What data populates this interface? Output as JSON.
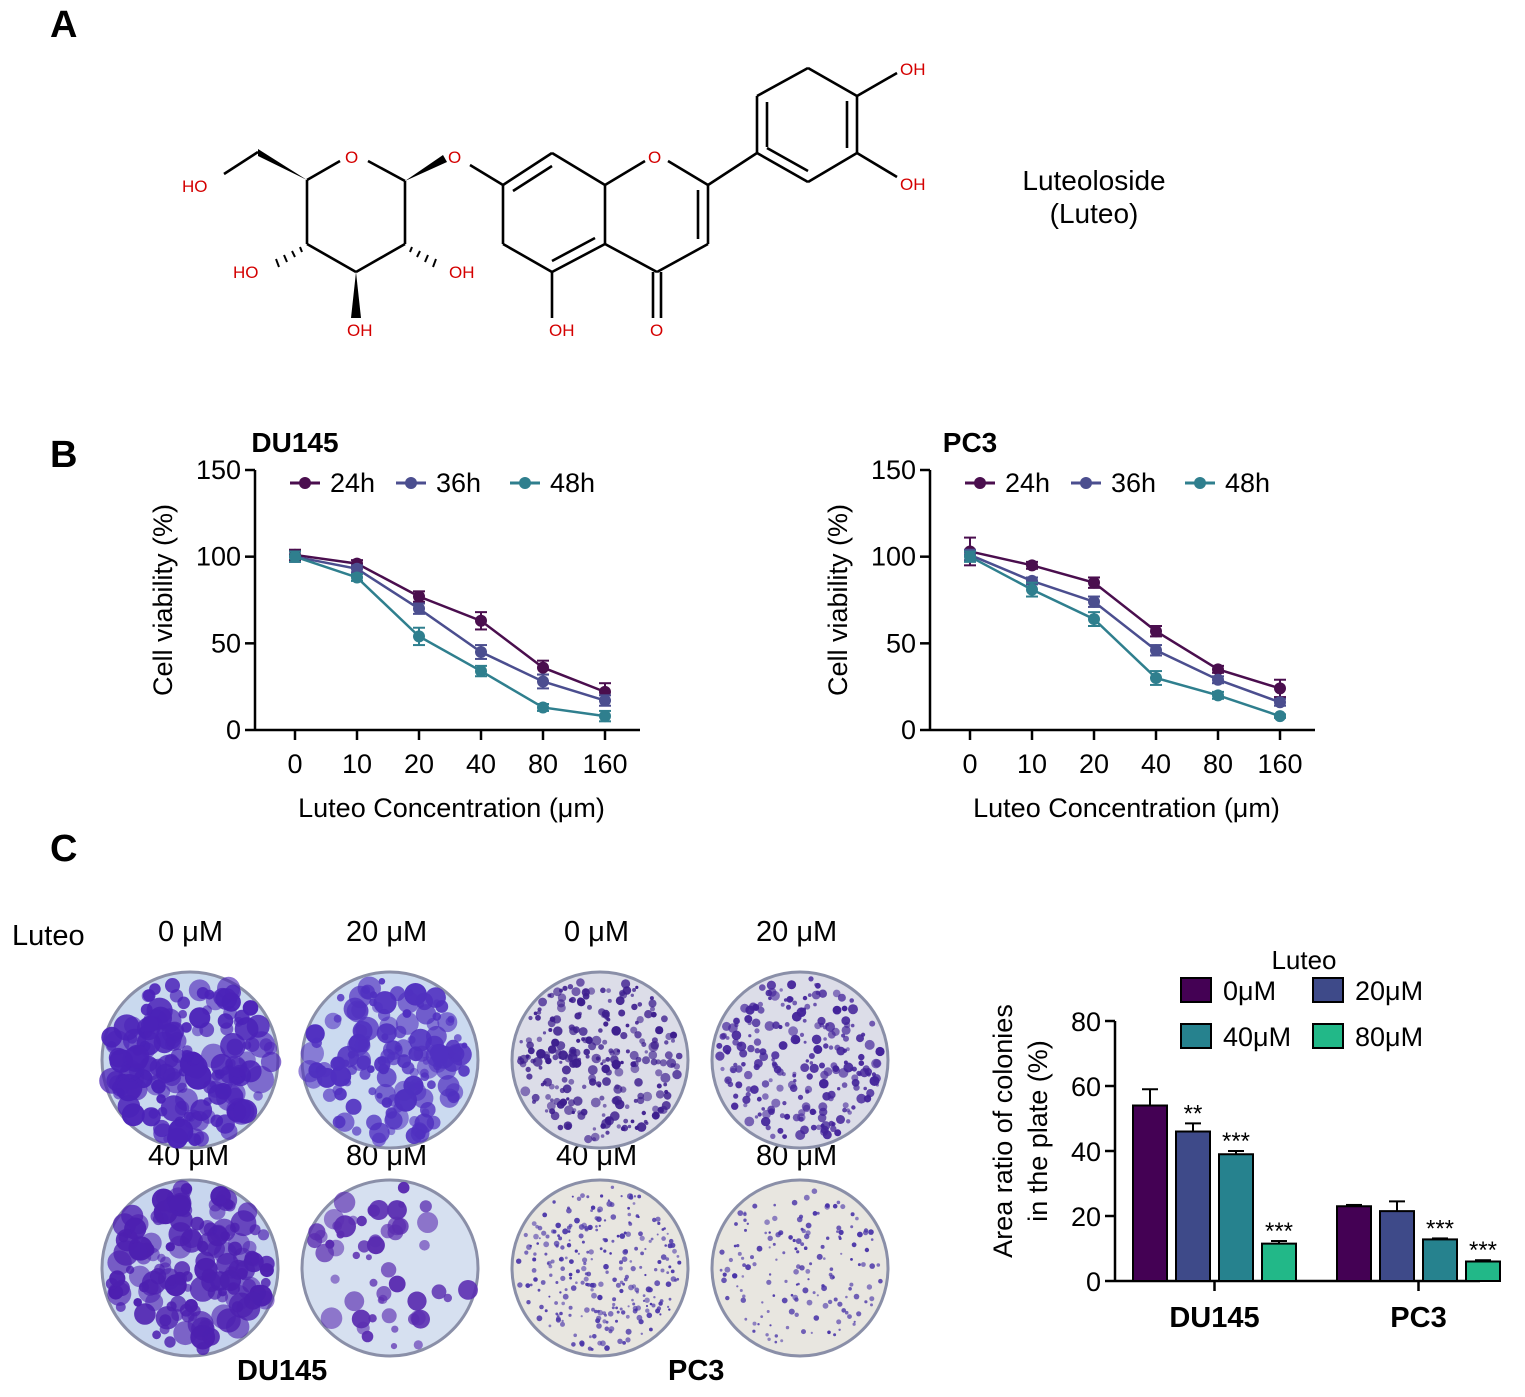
{
  "panels": {
    "a": "A",
    "b": "B",
    "c": "C"
  },
  "compound": {
    "name_line1": "Luteoloside",
    "name_line2": "(Luteo)",
    "atom_labels": [
      "HO",
      "O",
      "O",
      "O",
      "OH",
      "OH",
      "HO",
      "OH",
      "OH",
      "OH",
      "O"
    ],
    "colors": {
      "heteroatom": "#d40000",
      "bond": "#000000"
    }
  },
  "plates": {
    "row_label": "Luteo",
    "columns": [
      "0 μM",
      "20 μM",
      "0 μM",
      "20 μM"
    ],
    "columns_row2": [
      "40 μM",
      "80 μM",
      "40 μM",
      "80 μM"
    ],
    "groups": [
      "DU145",
      "PC3"
    ]
  },
  "chart_data": [
    {
      "type": "line",
      "title": "DU145",
      "xlabel": "Luteo Concentration (μm)",
      "ylabel": "Cell viability (%)",
      "categories": [
        "0",
        "10",
        "20",
        "40",
        "80",
        "160"
      ],
      "ylim": [
        0,
        150
      ],
      "yticks": [
        "0",
        "50",
        "100",
        "150"
      ],
      "legend_position": "top",
      "series": [
        {
          "name": "24h",
          "color": "#4a0e4e",
          "values": [
            101,
            96,
            77,
            63,
            36,
            22
          ],
          "errors": [
            3,
            2,
            3,
            5,
            4,
            5
          ]
        },
        {
          "name": "36h",
          "color": "#4b4e8f",
          "values": [
            100,
            93,
            70,
            45,
            28,
            17
          ],
          "errors": [
            3,
            2,
            3,
            4,
            4,
            3
          ]
        },
        {
          "name": "48h",
          "color": "#2f7f8e",
          "values": [
            100,
            88,
            54,
            34,
            13,
            8
          ],
          "errors": [
            3,
            2,
            5,
            3,
            2,
            3
          ]
        }
      ]
    },
    {
      "type": "line",
      "title": "PC3",
      "xlabel": "Luteo Concentration (μm)",
      "ylabel": "Cell viability (%)",
      "categories": [
        "0",
        "10",
        "20",
        "40",
        "80",
        "160"
      ],
      "ylim": [
        0,
        150
      ],
      "yticks": [
        "0",
        "50",
        "100",
        "150"
      ],
      "legend_position": "top",
      "series": [
        {
          "name": "24h",
          "color": "#4a0e4e",
          "values": [
            103,
            95,
            85,
            57,
            35,
            24
          ],
          "errors": [
            8,
            2,
            3,
            3,
            2,
            5
          ]
        },
        {
          "name": "36h",
          "color": "#4b4e8f",
          "values": [
            101,
            86,
            74,
            46,
            29,
            16
          ],
          "errors": [
            3,
            2,
            3,
            3,
            2,
            2
          ]
        },
        {
          "name": "48h",
          "color": "#2f7f8e",
          "values": [
            100,
            81,
            64,
            30,
            20,
            8
          ],
          "errors": [
            3,
            4,
            4,
            4,
            2,
            1
          ]
        }
      ]
    },
    {
      "type": "bar",
      "title": "",
      "legend_title": "Luteo",
      "ylabel_line1": "Area ratio of colonies",
      "ylabel_line2": "in the plate (%)",
      "categories": [
        "DU145",
        "PC3"
      ],
      "ylim": [
        0,
        80
      ],
      "yticks": [
        "0",
        "20",
        "40",
        "60",
        "80"
      ],
      "legend_position": "top-right",
      "series": [
        {
          "name": "0μM",
          "color": "#440154",
          "values": [
            54,
            23
          ],
          "errors": [
            5,
            0.4
          ],
          "marks": [
            "",
            ""
          ]
        },
        {
          "name": "20μM",
          "color": "#3e4a89",
          "values": [
            46,
            21.5
          ],
          "errors": [
            2.5,
            3
          ],
          "marks": [
            "**",
            ""
          ]
        },
        {
          "name": "40μM",
          "color": "#26828e",
          "values": [
            39,
            12.8
          ],
          "errors": [
            1,
            0.3
          ],
          "marks": [
            "***",
            "***"
          ]
        },
        {
          "name": "80μM",
          "color": "#22b888",
          "values": [
            11.5,
            6
          ],
          "errors": [
            0.8,
            0.4
          ],
          "marks": [
            "***",
            "***"
          ]
        }
      ]
    }
  ]
}
